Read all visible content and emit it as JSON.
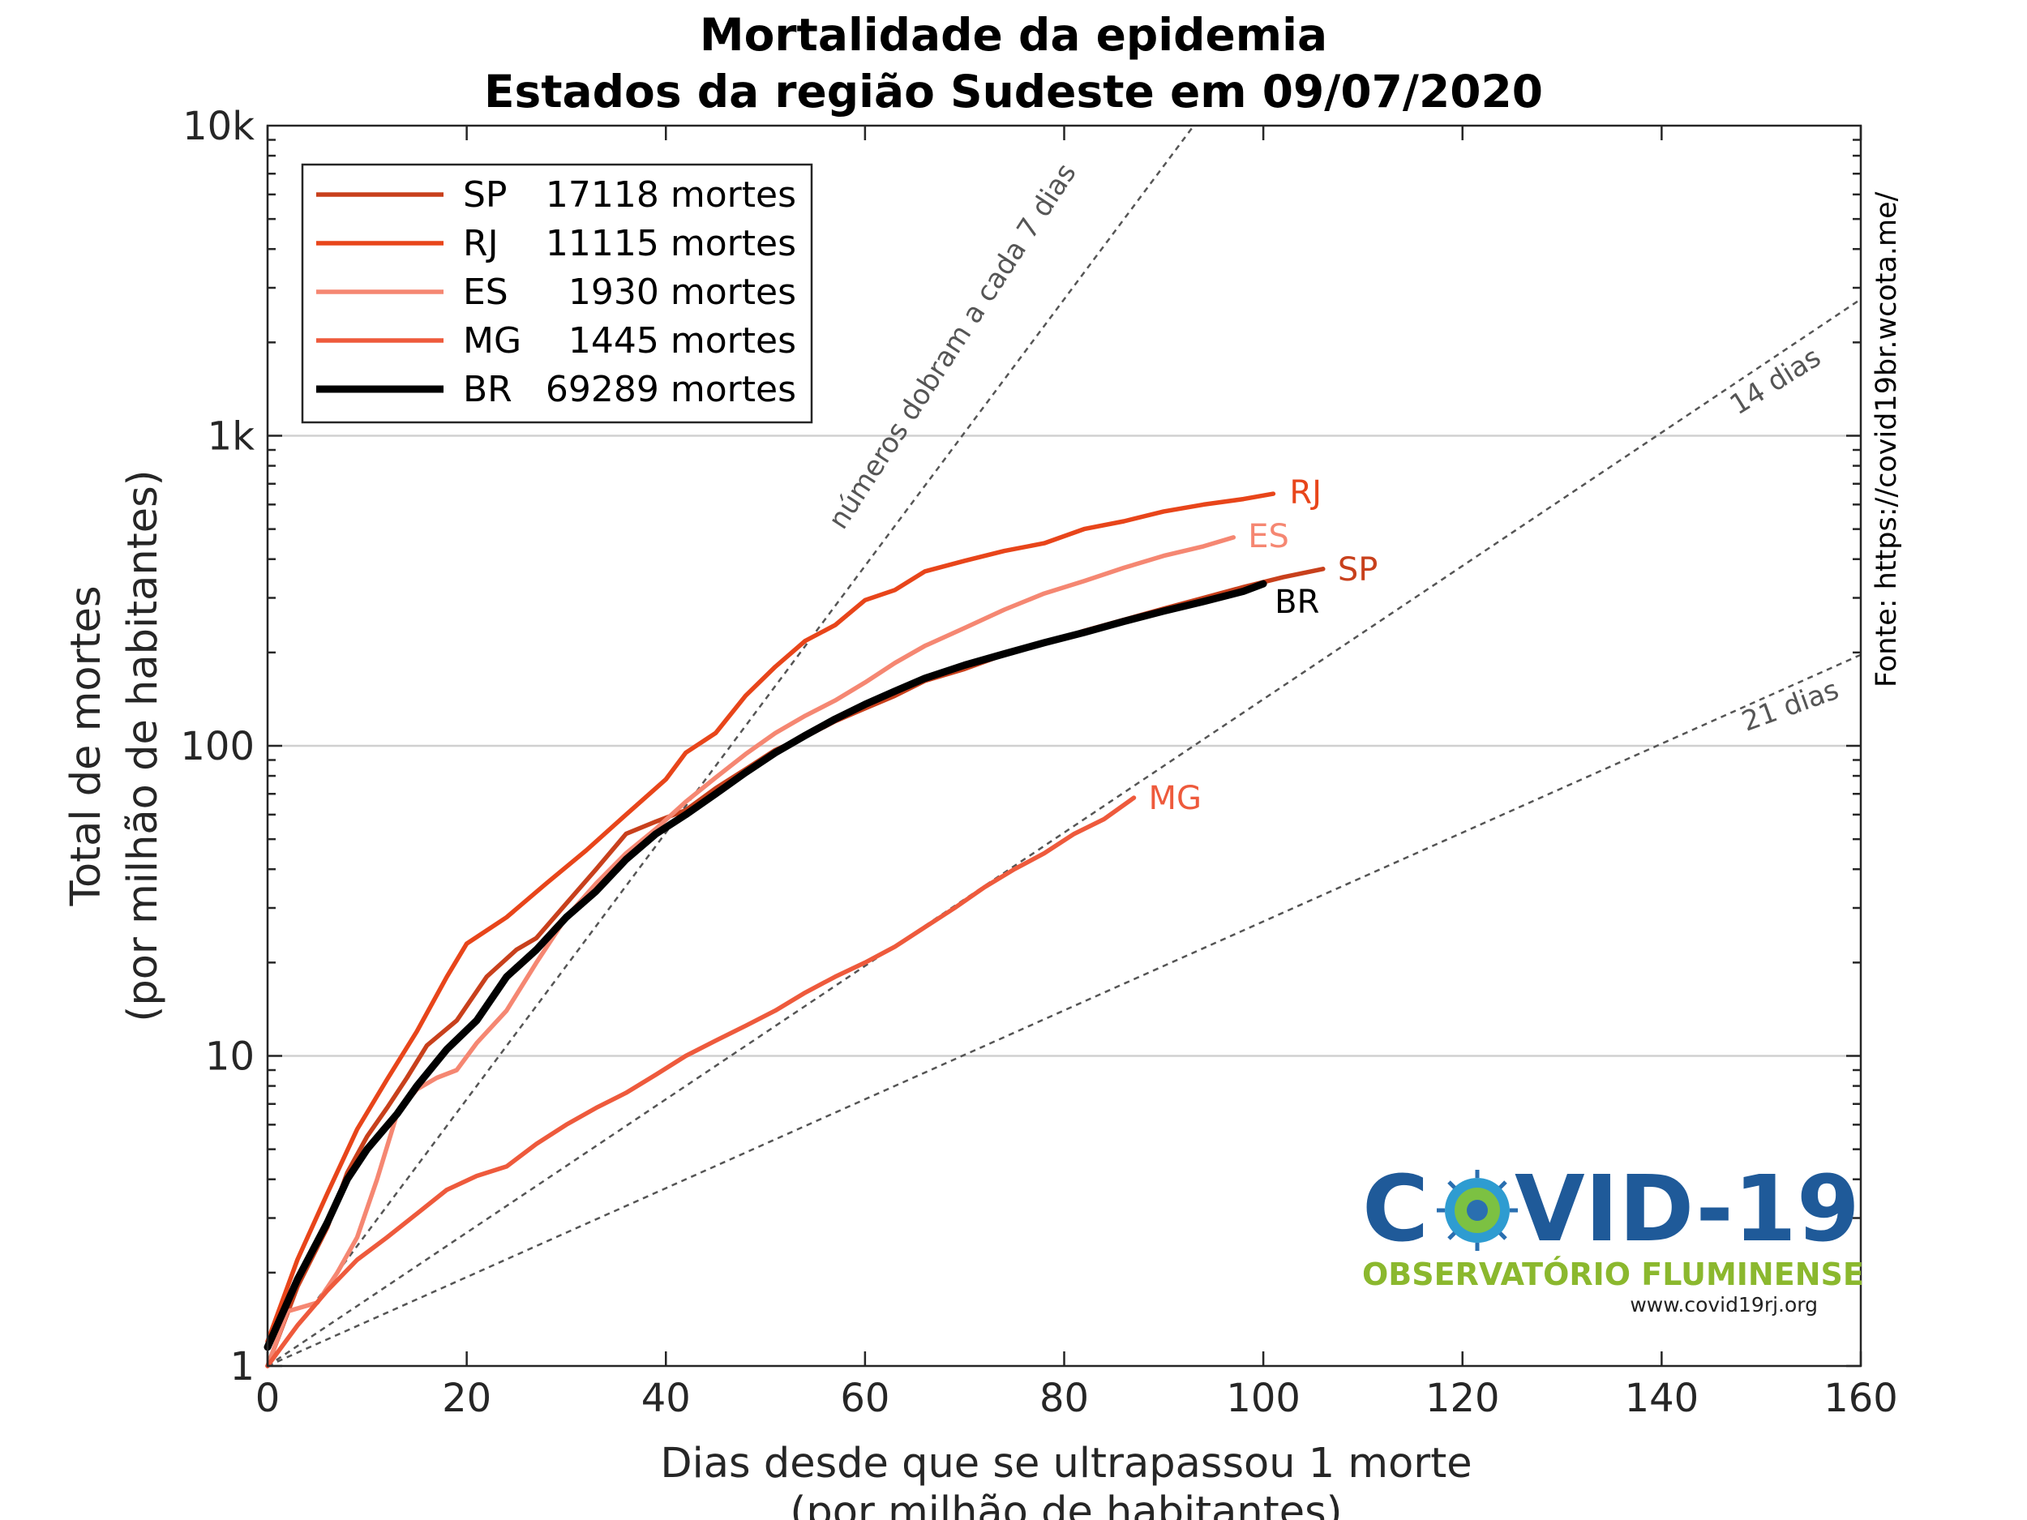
{
  "chart_data": {
    "type": "line",
    "title": "Mortalidade da epidemia",
    "subtitle": "Estados da região Sudeste em 09/07/2020",
    "xlabel": "Dias desde que se ultrapassou 1 morte",
    "xlabel2": "(por milhão de habitantes)",
    "ylabel": "Total de mortes",
    "ylabel2": "(por milhão de habitantes)",
    "xlim": [
      0,
      160
    ],
    "ylim": [
      1,
      10000
    ],
    "yscale": "log",
    "grid": "horizontal",
    "legend_position": "top-left",
    "x_ticks": [
      {
        "value": 0,
        "label": "0"
      },
      {
        "value": 20,
        "label": "20"
      },
      {
        "value": 40,
        "label": "40"
      },
      {
        "value": 60,
        "label": "60"
      },
      {
        "value": 80,
        "label": "80"
      },
      {
        "value": 100,
        "label": "100"
      },
      {
        "value": 120,
        "label": "120"
      },
      {
        "value": 140,
        "label": "140"
      },
      {
        "value": 160,
        "label": "160"
      }
    ],
    "y_ticks": [
      {
        "value": 1,
        "label": "1"
      },
      {
        "value": 10,
        "label": "10"
      },
      {
        "value": 100,
        "label": "100"
      },
      {
        "value": 1000,
        "label": "1k"
      },
      {
        "value": 10000,
        "label": "10k"
      }
    ],
    "series": [
      {
        "name": "SP",
        "legend_count": "17118",
        "legend_unit": "mortes",
        "end_label": "SP",
        "color": "#c8401c",
        "points": [
          [
            0,
            1
          ],
          [
            3,
            1.8
          ],
          [
            6,
            2.8
          ],
          [
            8,
            4.2
          ],
          [
            10,
            5.5
          ],
          [
            12,
            6.8
          ],
          [
            14,
            8.5
          ],
          [
            16,
            10.8
          ],
          [
            19,
            13
          ],
          [
            22,
            18
          ],
          [
            25,
            22
          ],
          [
            27,
            24
          ],
          [
            30,
            31
          ],
          [
            33,
            40
          ],
          [
            36,
            52
          ],
          [
            39,
            57
          ],
          [
            42,
            62
          ],
          [
            45,
            73
          ],
          [
            48,
            84
          ],
          [
            51,
            97
          ],
          [
            54,
            107
          ],
          [
            57,
            120
          ],
          [
            60,
            132
          ],
          [
            63,
            145
          ],
          [
            66,
            162
          ],
          [
            70,
            177
          ],
          [
            74,
            197
          ],
          [
            78,
            213
          ],
          [
            82,
            235
          ],
          [
            86,
            255
          ],
          [
            90,
            277
          ],
          [
            94,
            300
          ],
          [
            98,
            325
          ],
          [
            102,
            350
          ],
          [
            106,
            372
          ]
        ]
      },
      {
        "name": "RJ",
        "legend_count": "11115",
        "legend_unit": "mortes",
        "end_label": "RJ",
        "color": "#e8451a",
        "points": [
          [
            0,
            1.2
          ],
          [
            3,
            2.2
          ],
          [
            6,
            3.6
          ],
          [
            9,
            5.8
          ],
          [
            12,
            8.4
          ],
          [
            15,
            12
          ],
          [
            18,
            18
          ],
          [
            20,
            23
          ],
          [
            24,
            28
          ],
          [
            28,
            36
          ],
          [
            32,
            46
          ],
          [
            36,
            60
          ],
          [
            40,
            78
          ],
          [
            42,
            95
          ],
          [
            45,
            110
          ],
          [
            48,
            145
          ],
          [
            51,
            180
          ],
          [
            54,
            218
          ],
          [
            57,
            245
          ],
          [
            60,
            295
          ],
          [
            63,
            318
          ],
          [
            66,
            365
          ],
          [
            70,
            395
          ],
          [
            74,
            425
          ],
          [
            78,
            450
          ],
          [
            82,
            500
          ],
          [
            86,
            530
          ],
          [
            90,
            570
          ],
          [
            94,
            600
          ],
          [
            98,
            625
          ],
          [
            101,
            650
          ]
        ]
      },
      {
        "name": "ES",
        "legend_count": "1930",
        "legend_unit": "mortes",
        "end_label": "ES",
        "color": "#f58772",
        "points": [
          [
            0,
            1
          ],
          [
            2,
            1.5
          ],
          [
            5,
            1.6
          ],
          [
            7,
            2
          ],
          [
            9,
            2.6
          ],
          [
            11,
            4
          ],
          [
            13,
            6.5
          ],
          [
            15,
            7.8
          ],
          [
            17,
            8.5
          ],
          [
            19,
            9
          ],
          [
            21,
            11
          ],
          [
            24,
            14
          ],
          [
            27,
            20
          ],
          [
            30,
            28
          ],
          [
            33,
            36
          ],
          [
            36,
            45
          ],
          [
            39,
            54
          ],
          [
            42,
            66
          ],
          [
            45,
            79
          ],
          [
            48,
            94
          ],
          [
            51,
            110
          ],
          [
            54,
            125
          ],
          [
            57,
            140
          ],
          [
            60,
            160
          ],
          [
            63,
            185
          ],
          [
            66,
            210
          ],
          [
            70,
            240
          ],
          [
            74,
            275
          ],
          [
            78,
            310
          ],
          [
            82,
            340
          ],
          [
            86,
            375
          ],
          [
            90,
            410
          ],
          [
            94,
            440
          ],
          [
            97,
            470
          ]
        ]
      },
      {
        "name": "MG",
        "legend_count": "1445",
        "legend_unit": "mortes",
        "end_label": "MG",
        "color": "#ee5a3c",
        "points": [
          [
            0,
            1
          ],
          [
            3,
            1.35
          ],
          [
            6,
            1.75
          ],
          [
            9,
            2.2
          ],
          [
            12,
            2.6
          ],
          [
            15,
            3.1
          ],
          [
            18,
            3.7
          ],
          [
            21,
            4.1
          ],
          [
            24,
            4.4
          ],
          [
            27,
            5.2
          ],
          [
            30,
            6
          ],
          [
            33,
            6.8
          ],
          [
            36,
            7.6
          ],
          [
            39,
            8.7
          ],
          [
            42,
            10
          ],
          [
            45,
            11.2
          ],
          [
            48,
            12.5
          ],
          [
            51,
            14
          ],
          [
            54,
            16
          ],
          [
            57,
            18
          ],
          [
            60,
            20
          ],
          [
            63,
            22.5
          ],
          [
            66,
            26
          ],
          [
            69,
            30
          ],
          [
            72,
            35
          ],
          [
            75,
            40
          ],
          [
            78,
            45
          ],
          [
            81,
            52
          ],
          [
            84,
            58
          ],
          [
            87,
            68
          ]
        ]
      },
      {
        "name": "BR",
        "legend_count": "69289",
        "legend_unit": "mortes",
        "end_label": "BR",
        "color": "#000000",
        "points": [
          [
            0,
            1.15
          ],
          [
            3,
            1.9
          ],
          [
            6,
            2.9
          ],
          [
            8,
            4
          ],
          [
            10,
            5
          ],
          [
            13,
            6.5
          ],
          [
            15,
            8
          ],
          [
            18,
            10.5
          ],
          [
            21,
            13
          ],
          [
            24,
            18
          ],
          [
            27,
            22
          ],
          [
            30,
            28
          ],
          [
            33,
            34
          ],
          [
            36,
            43
          ],
          [
            39,
            52
          ],
          [
            42,
            60
          ],
          [
            45,
            70
          ],
          [
            48,
            82
          ],
          [
            51,
            95
          ],
          [
            54,
            108
          ],
          [
            57,
            122
          ],
          [
            60,
            136
          ],
          [
            63,
            150
          ],
          [
            66,
            165
          ],
          [
            70,
            182
          ],
          [
            74,
            198
          ],
          [
            78,
            215
          ],
          [
            82,
            232
          ],
          [
            86,
            252
          ],
          [
            90,
            272
          ],
          [
            94,
            292
          ],
          [
            98,
            315
          ],
          [
            100,
            333
          ]
        ]
      }
    ],
    "reference_lines": [
      {
        "label": "números dobram a cada 7 dias",
        "doubling_days": 7
      },
      {
        "label": "14 dias",
        "doubling_days": 14
      },
      {
        "label": "21 dias",
        "doubling_days": 21
      }
    ]
  },
  "source": "Fonte: https://covid19br.wcota.me/",
  "logo": {
    "text_left": "C",
    "text_right": "VID-19",
    "subtitle": "OBSERVATÓRIO FLUMINENSE",
    "url": "www.covid19rj.org"
  }
}
